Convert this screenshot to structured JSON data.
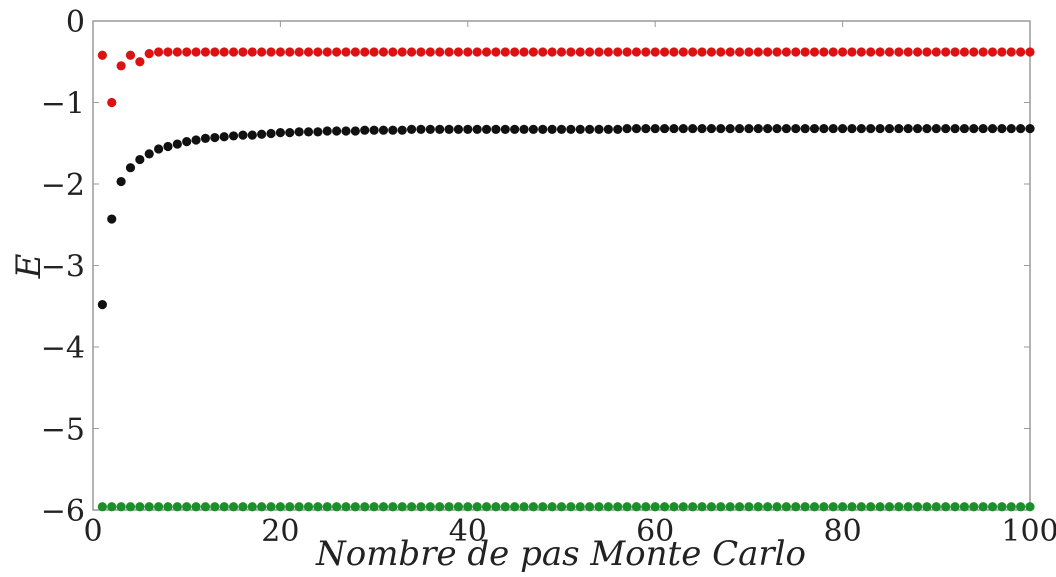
{
  "chart_data": {
    "type": "scatter",
    "xlabel": "Nombre de pas Monte Carlo",
    "ylabel": "E",
    "xlim": [
      0,
      100
    ],
    "ylim": [
      -6,
      0
    ],
    "x_ticks": [
      0,
      20,
      40,
      60,
      80,
      100
    ],
    "x_tick_labels": [
      "0",
      "20",
      "40",
      "60",
      "80",
      "100"
    ],
    "y_ticks": [
      0,
      -1,
      -2,
      -3,
      -4,
      -5,
      -6
    ],
    "y_tick_labels": [
      "0",
      "−1",
      "−2",
      "−3",
      "−4",
      "−5",
      "−6"
    ],
    "grid": false,
    "series": [
      {
        "color": "#dd1111",
        "x": [
          1,
          2,
          3,
          4,
          5,
          6,
          7,
          8,
          9,
          10,
          11,
          12,
          13,
          14,
          15,
          16,
          17,
          18,
          19,
          20,
          21,
          22,
          23,
          24,
          25,
          26,
          27,
          28,
          29,
          30,
          31,
          32,
          33,
          34,
          35,
          36,
          37,
          38,
          39,
          40,
          41,
          42,
          43,
          44,
          45,
          46,
          47,
          48,
          49,
          50,
          51,
          52,
          53,
          54,
          55,
          56,
          57,
          58,
          59,
          60,
          61,
          62,
          63,
          64,
          65,
          66,
          67,
          68,
          69,
          70,
          71,
          72,
          73,
          74,
          75,
          76,
          77,
          78,
          79,
          80,
          81,
          82,
          83,
          84,
          85,
          86,
          87,
          88,
          89,
          90,
          91,
          92,
          93,
          94,
          95,
          96,
          97,
          98,
          99,
          100
        ],
        "y": [
          -0.42,
          -1.0,
          -0.55,
          -0.42,
          -0.5,
          -0.4,
          -0.38,
          -0.38,
          -0.38,
          -0.38,
          -0.38,
          -0.38,
          -0.38,
          -0.38,
          -0.38,
          -0.38,
          -0.38,
          -0.38,
          -0.38,
          -0.38,
          -0.38,
          -0.38,
          -0.38,
          -0.38,
          -0.38,
          -0.38,
          -0.38,
          -0.38,
          -0.38,
          -0.38,
          -0.38,
          -0.38,
          -0.38,
          -0.38,
          -0.38,
          -0.38,
          -0.38,
          -0.38,
          -0.38,
          -0.38,
          -0.38,
          -0.38,
          -0.38,
          -0.38,
          -0.38,
          -0.38,
          -0.38,
          -0.38,
          -0.38,
          -0.38,
          -0.38,
          -0.38,
          -0.38,
          -0.38,
          -0.38,
          -0.38,
          -0.38,
          -0.38,
          -0.38,
          -0.38,
          -0.38,
          -0.38,
          -0.38,
          -0.38,
          -0.38,
          -0.38,
          -0.38,
          -0.38,
          -0.38,
          -0.38,
          -0.38,
          -0.38,
          -0.38,
          -0.38,
          -0.38,
          -0.38,
          -0.38,
          -0.38,
          -0.38,
          -0.38,
          -0.38,
          -0.38,
          -0.38,
          -0.38,
          -0.38,
          -0.38,
          -0.38,
          -0.38,
          -0.38,
          -0.38,
          -0.38,
          -0.38,
          -0.38,
          -0.38,
          -0.38,
          -0.38,
          -0.38,
          -0.38,
          -0.38,
          -0.38
        ]
      },
      {
        "color": "#111111",
        "x": [
          1,
          2,
          3,
          4,
          5,
          6,
          7,
          8,
          9,
          10,
          11,
          12,
          13,
          14,
          15,
          16,
          17,
          18,
          19,
          20,
          21,
          22,
          23,
          24,
          25,
          26,
          27,
          28,
          29,
          30,
          31,
          32,
          33,
          34,
          35,
          36,
          37,
          38,
          39,
          40,
          41,
          42,
          43,
          44,
          45,
          46,
          47,
          48,
          49,
          50,
          51,
          52,
          53,
          54,
          55,
          56,
          57,
          58,
          59,
          60,
          61,
          62,
          63,
          64,
          65,
          66,
          67,
          68,
          69,
          70,
          71,
          72,
          73,
          74,
          75,
          76,
          77,
          78,
          79,
          80,
          81,
          82,
          83,
          84,
          85,
          86,
          87,
          88,
          89,
          90,
          91,
          92,
          93,
          94,
          95,
          96,
          97,
          98,
          99,
          100
        ],
        "y": [
          -3.48,
          -2.43,
          -1.97,
          -1.8,
          -1.7,
          -1.63,
          -1.57,
          -1.54,
          -1.51,
          -1.48,
          -1.46,
          -1.44,
          -1.43,
          -1.42,
          -1.41,
          -1.4,
          -1.4,
          -1.39,
          -1.38,
          -1.37,
          -1.37,
          -1.36,
          -1.36,
          -1.36,
          -1.35,
          -1.35,
          -1.35,
          -1.35,
          -1.34,
          -1.34,
          -1.34,
          -1.34,
          -1.34,
          -1.33,
          -1.33,
          -1.33,
          -1.33,
          -1.33,
          -1.33,
          -1.33,
          -1.33,
          -1.33,
          -1.33,
          -1.33,
          -1.33,
          -1.33,
          -1.33,
          -1.33,
          -1.33,
          -1.33,
          -1.33,
          -1.33,
          -1.33,
          -1.33,
          -1.33,
          -1.33,
          -1.32,
          -1.32,
          -1.32,
          -1.32,
          -1.32,
          -1.32,
          -1.32,
          -1.32,
          -1.32,
          -1.32,
          -1.32,
          -1.32,
          -1.32,
          -1.32,
          -1.32,
          -1.32,
          -1.32,
          -1.32,
          -1.32,
          -1.32,
          -1.32,
          -1.32,
          -1.32,
          -1.32,
          -1.32,
          -1.32,
          -1.32,
          -1.32,
          -1.32,
          -1.32,
          -1.32,
          -1.32,
          -1.32,
          -1.32,
          -1.32,
          -1.32,
          -1.32,
          -1.32,
          -1.32,
          -1.32,
          -1.32,
          -1.32,
          -1.32,
          -1.32
        ]
      },
      {
        "color": "#1a8f2a",
        "x": [
          1,
          2,
          3,
          4,
          5,
          6,
          7,
          8,
          9,
          10,
          11,
          12,
          13,
          14,
          15,
          16,
          17,
          18,
          19,
          20,
          21,
          22,
          23,
          24,
          25,
          26,
          27,
          28,
          29,
          30,
          31,
          32,
          33,
          34,
          35,
          36,
          37,
          38,
          39,
          40,
          41,
          42,
          43,
          44,
          45,
          46,
          47,
          48,
          49,
          50,
          51,
          52,
          53,
          54,
          55,
          56,
          57,
          58,
          59,
          60,
          61,
          62,
          63,
          64,
          65,
          66,
          67,
          68,
          69,
          70,
          71,
          72,
          73,
          74,
          75,
          76,
          77,
          78,
          79,
          80,
          81,
          82,
          83,
          84,
          85,
          86,
          87,
          88,
          89,
          90,
          91,
          92,
          93,
          94,
          95,
          96,
          97,
          98,
          99,
          100
        ],
        "y": [
          -5.96,
          -5.96,
          -5.96,
          -5.96,
          -5.96,
          -5.96,
          -5.96,
          -5.96,
          -5.96,
          -5.96,
          -5.96,
          -5.96,
          -5.96,
          -5.96,
          -5.96,
          -5.96,
          -5.96,
          -5.96,
          -5.96,
          -5.96,
          -5.96,
          -5.96,
          -5.96,
          -5.96,
          -5.96,
          -5.96,
          -5.96,
          -5.96,
          -5.96,
          -5.96,
          -5.96,
          -5.96,
          -5.96,
          -5.96,
          -5.96,
          -5.96,
          -5.96,
          -5.96,
          -5.96,
          -5.96,
          -5.96,
          -5.96,
          -5.96,
          -5.96,
          -5.96,
          -5.96,
          -5.96,
          -5.96,
          -5.96,
          -5.96,
          -5.96,
          -5.96,
          -5.96,
          -5.96,
          -5.96,
          -5.96,
          -5.96,
          -5.96,
          -5.96,
          -5.96,
          -5.96,
          -5.96,
          -5.96,
          -5.96,
          -5.96,
          -5.96,
          -5.96,
          -5.96,
          -5.96,
          -5.96,
          -5.96,
          -5.96,
          -5.96,
          -5.96,
          -5.96,
          -5.96,
          -5.96,
          -5.96,
          -5.96,
          -5.96,
          -5.96,
          -5.96,
          -5.96,
          -5.96,
          -5.96,
          -5.96,
          -5.96,
          -5.96,
          -5.96,
          -5.96,
          -5.96,
          -5.96,
          -5.96,
          -5.96,
          -5.96,
          -5.96,
          -5.96,
          -5.96,
          -5.96,
          -5.96
        ]
      }
    ]
  }
}
